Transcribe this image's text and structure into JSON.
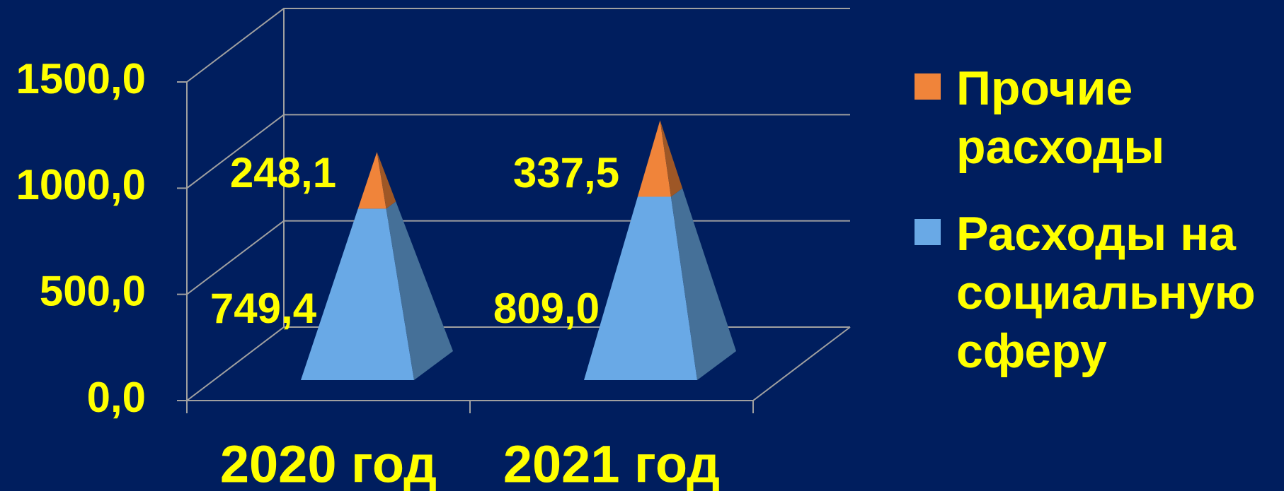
{
  "chart_data": {
    "type": "pyramid",
    "categories": [
      "2020 год",
      "2021 год"
    ],
    "series": [
      {
        "name": "Расходы на социальную сферу",
        "color": "#69a9e6",
        "values": [
          749.4,
          809.0
        ],
        "value_labels": [
          "749,4",
          "809,0"
        ]
      },
      {
        "name": "Прочие расходы",
        "color": "#f0843a",
        "values": [
          248.1,
          337.5
        ],
        "value_labels": [
          "248,1",
          "337,5"
        ]
      }
    ],
    "ylim": [
      0,
      1500
    ],
    "yticks": [
      {
        "value": 0,
        "label": "0,0"
      },
      {
        "value": 500,
        "label": "500,0"
      },
      {
        "value": 1000,
        "label": "1000,0"
      },
      {
        "value": 1500,
        "label": "1500,0"
      }
    ],
    "grid": true,
    "legend": "right"
  }
}
